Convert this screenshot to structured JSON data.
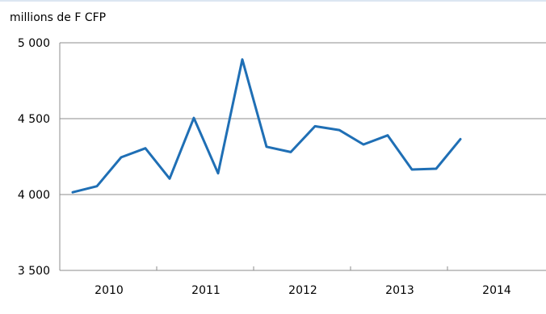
{
  "chart_data": {
    "type": "line",
    "ylabel": "millions de F CFP",
    "ylim": [
      3500,
      5000
    ],
    "yticks": [
      3500,
      4000,
      4500,
      5000
    ],
    "ytick_labels": [
      "3 500",
      "4 000",
      "4 500",
      "5 000"
    ],
    "xtick_labels": [
      "2010",
      "2011",
      "2012",
      "2013",
      "2014"
    ],
    "grid": "horizontal",
    "series": [
      {
        "color": "#1f6fb5",
        "points": [
          {
            "x": "2010-T1",
            "y": 4015
          },
          {
            "x": "2010-T2",
            "y": 4055
          },
          {
            "x": "2010-T3",
            "y": 4245
          },
          {
            "x": "2010-T4",
            "y": 4305
          },
          {
            "x": "2011-T1",
            "y": 4105
          },
          {
            "x": "2011-T2",
            "y": 4505
          },
          {
            "x": "2011-T3",
            "y": 4140
          },
          {
            "x": "2011-T4",
            "y": 4890
          },
          {
            "x": "2012-T1",
            "y": 4315
          },
          {
            "x": "2012-T2",
            "y": 4280
          },
          {
            "x": "2012-T3",
            "y": 4450
          },
          {
            "x": "2012-T4",
            "y": 4425
          },
          {
            "x": "2013-T1",
            "y": 4330
          },
          {
            "x": "2013-T2",
            "y": 4390
          },
          {
            "x": "2013-T3",
            "y": 4165
          },
          {
            "x": "2013-T4",
            "y": 4170
          },
          {
            "x": "2014-T1",
            "y": 4365
          }
        ]
      }
    ]
  }
}
